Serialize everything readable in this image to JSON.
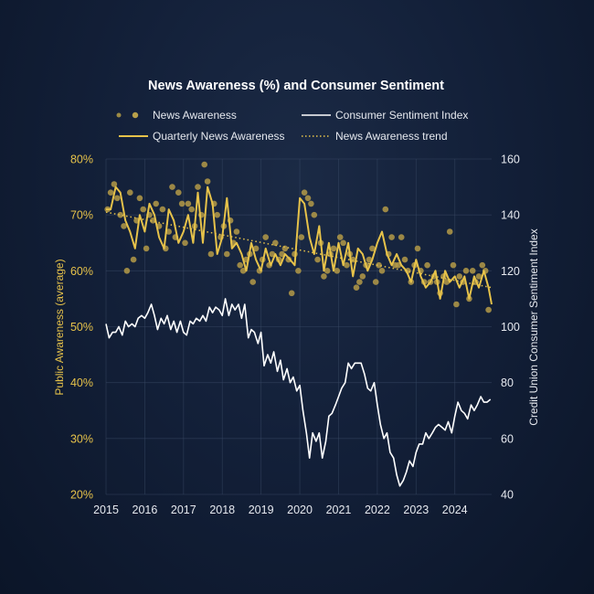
{
  "chart_data": {
    "type": "line",
    "title": "News Awareness (%) and Consumer Sentiment",
    "xlabel": "",
    "ylabel_left": "Public Awareness (average)",
    "ylabel_right": "Credit Union Consumer Sentiment Index",
    "x_ticks": [
      "2015",
      "2016",
      "2017",
      "2018",
      "2019",
      "2020",
      "2021",
      "2022",
      "2023",
      "2024"
    ],
    "y_left_ticks": [
      "20%",
      "30%",
      "40%",
      "50%",
      "60%",
      "70%",
      "80%"
    ],
    "y_right_ticks": [
      "40",
      "60",
      "80",
      "100",
      "120",
      "140",
      "160"
    ],
    "ylim_left": [
      20,
      80
    ],
    "ylim_right": [
      40,
      160
    ],
    "xlim": [
      2015.0,
      2024.95
    ],
    "grid": true,
    "legend_placement": "top",
    "colors": {
      "awareness": "#e6c24a",
      "sentiment": "#ffffff",
      "grid": "#3a4a66",
      "left_axis": "#e6c24a",
      "right_axis": "#e6e9ef"
    },
    "legend": {
      "scatter": "News Awareness",
      "sentiment": "Consumer Sentiment Index",
      "quarterly": "Quarterly News Awareness",
      "trend": "News Awareness trend"
    },
    "series": [
      {
        "name": "News Awareness",
        "kind": "scatter",
        "axis": "left",
        "x": [
          2015.04,
          2015.12,
          2015.21,
          2015.29,
          2015.37,
          2015.46,
          2015.54,
          2015.62,
          2015.71,
          2015.79,
          2015.87,
          2015.96,
          2016.04,
          2016.12,
          2016.21,
          2016.29,
          2016.37,
          2016.46,
          2016.54,
          2016.62,
          2016.71,
          2016.79,
          2016.87,
          2016.96,
          2017.04,
          2017.12,
          2017.21,
          2017.29,
          2017.37,
          2017.46,
          2017.54,
          2017.62,
          2017.71,
          2017.79,
          2017.87,
          2017.96,
          2018.04,
          2018.12,
          2018.21,
          2018.29,
          2018.37,
          2018.46,
          2018.54,
          2018.62,
          2018.71,
          2018.79,
          2018.87,
          2018.96,
          2019.04,
          2019.12,
          2019.21,
          2019.29,
          2019.37,
          2019.46,
          2019.54,
          2019.62,
          2019.71,
          2019.79,
          2019.87,
          2019.96,
          2020.04,
          2020.12,
          2020.21,
          2020.29,
          2020.37,
          2020.46,
          2020.54,
          2020.62,
          2020.71,
          2020.79,
          2020.87,
          2020.96,
          2021.04,
          2021.12,
          2021.21,
          2021.29,
          2021.37,
          2021.46,
          2021.54,
          2021.62,
          2021.71,
          2021.79,
          2021.87,
          2021.96,
          2022.04,
          2022.12,
          2022.21,
          2022.29,
          2022.37,
          2022.46,
          2022.54,
          2022.62,
          2022.71,
          2022.79,
          2022.87,
          2022.96,
          2023.04,
          2023.12,
          2023.21,
          2023.29,
          2023.37,
          2023.46,
          2023.54,
          2023.62,
          2023.71,
          2023.79,
          2023.87,
          2023.96,
          2024.04,
          2024.12,
          2024.21,
          2024.29,
          2024.37,
          2024.46,
          2024.54,
          2024.62,
          2024.71,
          2024.79,
          2024.87
        ],
        "values": [
          71,
          74,
          75.5,
          73,
          70,
          68,
          60,
          74,
          62,
          69,
          73,
          71,
          64,
          70,
          69,
          72,
          68,
          71,
          64,
          67,
          75,
          66,
          74,
          72,
          65,
          72,
          71,
          68,
          75,
          70,
          79,
          76,
          63,
          72,
          70,
          66,
          68,
          63,
          69,
          65,
          67,
          61,
          60,
          62,
          63,
          58,
          64,
          60,
          62,
          66,
          61,
          63,
          65,
          62,
          63,
          64,
          62,
          56,
          63,
          60,
          66,
          74,
          73,
          72,
          70,
          62,
          65,
          59,
          60,
          63,
          64,
          60,
          66,
          65,
          61,
          63,
          62,
          57,
          58,
          59,
          61,
          62,
          64,
          58,
          61,
          60,
          71,
          63,
          66,
          61,
          61,
          66,
          62,
          60,
          58,
          61,
          64,
          60,
          58,
          61,
          58,
          59,
          58,
          56,
          59,
          58,
          67,
          61,
          54,
          59,
          58,
          60,
          55,
          60,
          58,
          59,
          61,
          60,
          53
        ]
      },
      {
        "name": "Quarterly News Awareness",
        "kind": "line",
        "axis": "left",
        "x": [
          2015.0,
          2015.12,
          2015.25,
          2015.37,
          2015.5,
          2015.62,
          2015.75,
          2015.87,
          2016.0,
          2016.12,
          2016.25,
          2016.37,
          2016.5,
          2016.62,
          2016.75,
          2016.87,
          2017.0,
          2017.12,
          2017.25,
          2017.37,
          2017.5,
          2017.62,
          2017.75,
          2017.87,
          2018.0,
          2018.12,
          2018.25,
          2018.37,
          2018.5,
          2018.62,
          2018.75,
          2018.87,
          2019.0,
          2019.12,
          2019.25,
          2019.37,
          2019.5,
          2019.62,
          2019.75,
          2019.87,
          2020.0,
          2020.12,
          2020.25,
          2020.37,
          2020.5,
          2020.62,
          2020.75,
          2020.87,
          2021.0,
          2021.12,
          2021.25,
          2021.37,
          2021.5,
          2021.62,
          2021.75,
          2021.87,
          2022.0,
          2022.12,
          2022.25,
          2022.37,
          2022.5,
          2022.62,
          2022.75,
          2022.87,
          2023.0,
          2023.12,
          2023.25,
          2023.37,
          2023.5,
          2023.62,
          2023.75,
          2023.87,
          2024.0,
          2024.12,
          2024.25,
          2024.37,
          2024.5,
          2024.62,
          2024.75,
          2024.87,
          2024.95
        ],
        "values": [
          71,
          71,
          75,
          74,
          69,
          67,
          64,
          70,
          67,
          72,
          70,
          66,
          64,
          71,
          69,
          65,
          67,
          70,
          65,
          74,
          65,
          75,
          72,
          63,
          66,
          73,
          64,
          65,
          63,
          60,
          65,
          62,
          60,
          64,
          61,
          63,
          61,
          63,
          62,
          61,
          73,
          72,
          66,
          63,
          68,
          60,
          65,
          60,
          65,
          61,
          65,
          59,
          64,
          63,
          60,
          62,
          65,
          67,
          63,
          61,
          63,
          61,
          60,
          58,
          62,
          59,
          57,
          58,
          60,
          55,
          60,
          58,
          59,
          57,
          59,
          55,
          59,
          57,
          60,
          57,
          54
        ]
      },
      {
        "name": "News Awareness trend",
        "kind": "dotted-line",
        "axis": "left",
        "x": [
          2015.0,
          2024.95
        ],
        "values": [
          70.5,
          57.0
        ]
      },
      {
        "name": "Consumer Sentiment Index",
        "kind": "line",
        "axis": "right",
        "x": [
          2015.0,
          2015.08,
          2015.17,
          2015.25,
          2015.33,
          2015.42,
          2015.5,
          2015.58,
          2015.67,
          2015.75,
          2015.83,
          2015.92,
          2016.0,
          2016.08,
          2016.17,
          2016.25,
          2016.33,
          2016.42,
          2016.5,
          2016.58,
          2016.67,
          2016.75,
          2016.83,
          2016.92,
          2017.0,
          2017.08,
          2017.17,
          2017.25,
          2017.33,
          2017.42,
          2017.5,
          2017.58,
          2017.67,
          2017.75,
          2017.83,
          2017.92,
          2018.0,
          2018.08,
          2018.17,
          2018.25,
          2018.33,
          2018.42,
          2018.5,
          2018.58,
          2018.67,
          2018.75,
          2018.83,
          2018.92,
          2019.0,
          2019.08,
          2019.17,
          2019.25,
          2019.33,
          2019.42,
          2019.5,
          2019.58,
          2019.67,
          2019.75,
          2019.83,
          2019.92,
          2020.0,
          2020.08,
          2020.17,
          2020.25,
          2020.33,
          2020.42,
          2020.5,
          2020.58,
          2020.67,
          2020.75,
          2020.83,
          2020.92,
          2021.0,
          2021.08,
          2021.17,
          2021.25,
          2021.33,
          2021.42,
          2021.5,
          2021.58,
          2021.67,
          2021.75,
          2021.83,
          2021.92,
          2022.0,
          2022.08,
          2022.17,
          2022.25,
          2022.33,
          2022.42,
          2022.5,
          2022.58,
          2022.67,
          2022.75,
          2022.83,
          2022.92,
          2023.0,
          2023.08,
          2023.17,
          2023.25,
          2023.33,
          2023.42,
          2023.5,
          2023.58,
          2023.67,
          2023.75,
          2023.83,
          2023.92,
          2024.0,
          2024.08,
          2024.17,
          2024.25,
          2024.33,
          2024.42,
          2024.5,
          2024.58,
          2024.67,
          2024.75,
          2024.83,
          2024.92
        ],
        "values": [
          101,
          96,
          98,
          98,
          100,
          97,
          102,
          100,
          101,
          100,
          103,
          104,
          103,
          105,
          108,
          104,
          99,
          103,
          101,
          104,
          99,
          102,
          98,
          102,
          98,
          97,
          102,
          101,
          103,
          102,
          104,
          102,
          107,
          105,
          107,
          106,
          104,
          110,
          104,
          108,
          106,
          108,
          103,
          108,
          96,
          99,
          98,
          94,
          98,
          86,
          90,
          87,
          91,
          84,
          88,
          81,
          85,
          80,
          82,
          77,
          79,
          70,
          62,
          53,
          62,
          59,
          62,
          53,
          59,
          68,
          69,
          72,
          75,
          78,
          80,
          87,
          85,
          87,
          87,
          87,
          83,
          78,
          77,
          80,
          72,
          65,
          60,
          62,
          55,
          53,
          47,
          43,
          45,
          48,
          52,
          50,
          55,
          58,
          58,
          62,
          60,
          62,
          64,
          65,
          64,
          63,
          66,
          62,
          68,
          73,
          70,
          69,
          67,
          72,
          70,
          72,
          75,
          73,
          73,
          74
        ]
      }
    ]
  }
}
